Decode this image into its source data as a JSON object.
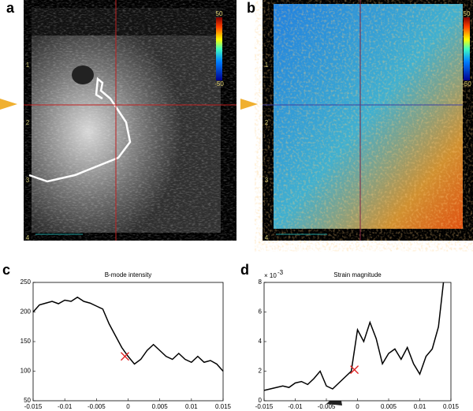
{
  "image_panels": [
    {
      "label": "a",
      "depth_labels": [
        "1",
        "2",
        "3",
        "4"
      ],
      "colorbar_labels": [
        "50",
        "-50"
      ]
    },
    {
      "label": "b",
      "depth_labels": [
        "1",
        "2",
        "3",
        "4"
      ],
      "colorbar_labels": [
        "50",
        "-50"
      ]
    }
  ],
  "chart_data": [
    {
      "type": "line",
      "panel_label": "c",
      "title": "B-mode intensity",
      "x": [
        -0.015,
        -0.014,
        -0.013,
        -0.012,
        -0.011,
        -0.01,
        -0.009,
        -0.008,
        -0.007,
        -0.006,
        -0.005,
        -0.004,
        -0.003,
        -0.002,
        -0.001,
        0,
        0.001,
        0.002,
        0.003,
        0.004,
        0.005,
        0.006,
        0.007,
        0.008,
        0.009,
        0.01,
        0.011,
        0.012,
        0.013,
        0.014,
        0.015
      ],
      "series": [
        {
          "color": "#000000",
          "values": [
            200,
            212,
            215,
            218,
            214,
            220,
            218,
            225,
            218,
            215,
            210,
            205,
            180,
            160,
            140,
            125,
            112,
            120,
            135,
            145,
            135,
            125,
            120,
            130,
            120,
            115,
            125,
            115,
            118,
            112,
            100
          ]
        }
      ],
      "highlight": {
        "x": -0.0005,
        "y": 125,
        "color": "#e02020"
      },
      "xlim": [
        -0.015,
        0.015
      ],
      "xticks": [
        -0.015,
        -0.01,
        -0.005,
        0,
        0.005,
        0.01,
        0.015
      ],
      "ylim": [
        50,
        250
      ],
      "yticks": [
        50,
        100,
        150,
        200,
        250
      ]
    },
    {
      "type": "line",
      "panel_label": "d",
      "title": "Strain magnitude",
      "y_multiplier": "× 10",
      "y_multiplier_exponent": "-3",
      "x": [
        -0.015,
        -0.014,
        -0.013,
        -0.012,
        -0.011,
        -0.01,
        -0.009,
        -0.008,
        -0.007,
        -0.006,
        -0.005,
        -0.004,
        -0.003,
        -0.002,
        -0.001,
        0,
        0.001,
        0.002,
        0.003,
        0.004,
        0.005,
        0.006,
        0.007,
        0.008,
        0.009,
        0.01,
        0.011,
        0.012,
        0.013,
        0.0138
      ],
      "series": [
        {
          "color": "#000000",
          "values": [
            0.7,
            0.8,
            0.9,
            1.0,
            0.9,
            1.2,
            1.3,
            1.1,
            1.5,
            2.0,
            1.0,
            0.8,
            1.2,
            1.6,
            2.0,
            4.8,
            4.0,
            5.3,
            4.2,
            2.5,
            3.2,
            3.5,
            2.8,
            3.6,
            2.5,
            1.8,
            3.0,
            3.5,
            5.0,
            8.0
          ]
        }
      ],
      "highlight": {
        "x": -0.0005,
        "y": 2.1,
        "color": "#e02020"
      },
      "xlim": [
        -0.015,
        0.015
      ],
      "xticks": [
        -0.015,
        -0.01,
        -0.005,
        0,
        0.005,
        0.01,
        0.015
      ],
      "ylim": [
        0,
        8
      ],
      "yticks": [
        0,
        2,
        4,
        6,
        8
      ]
    }
  ]
}
